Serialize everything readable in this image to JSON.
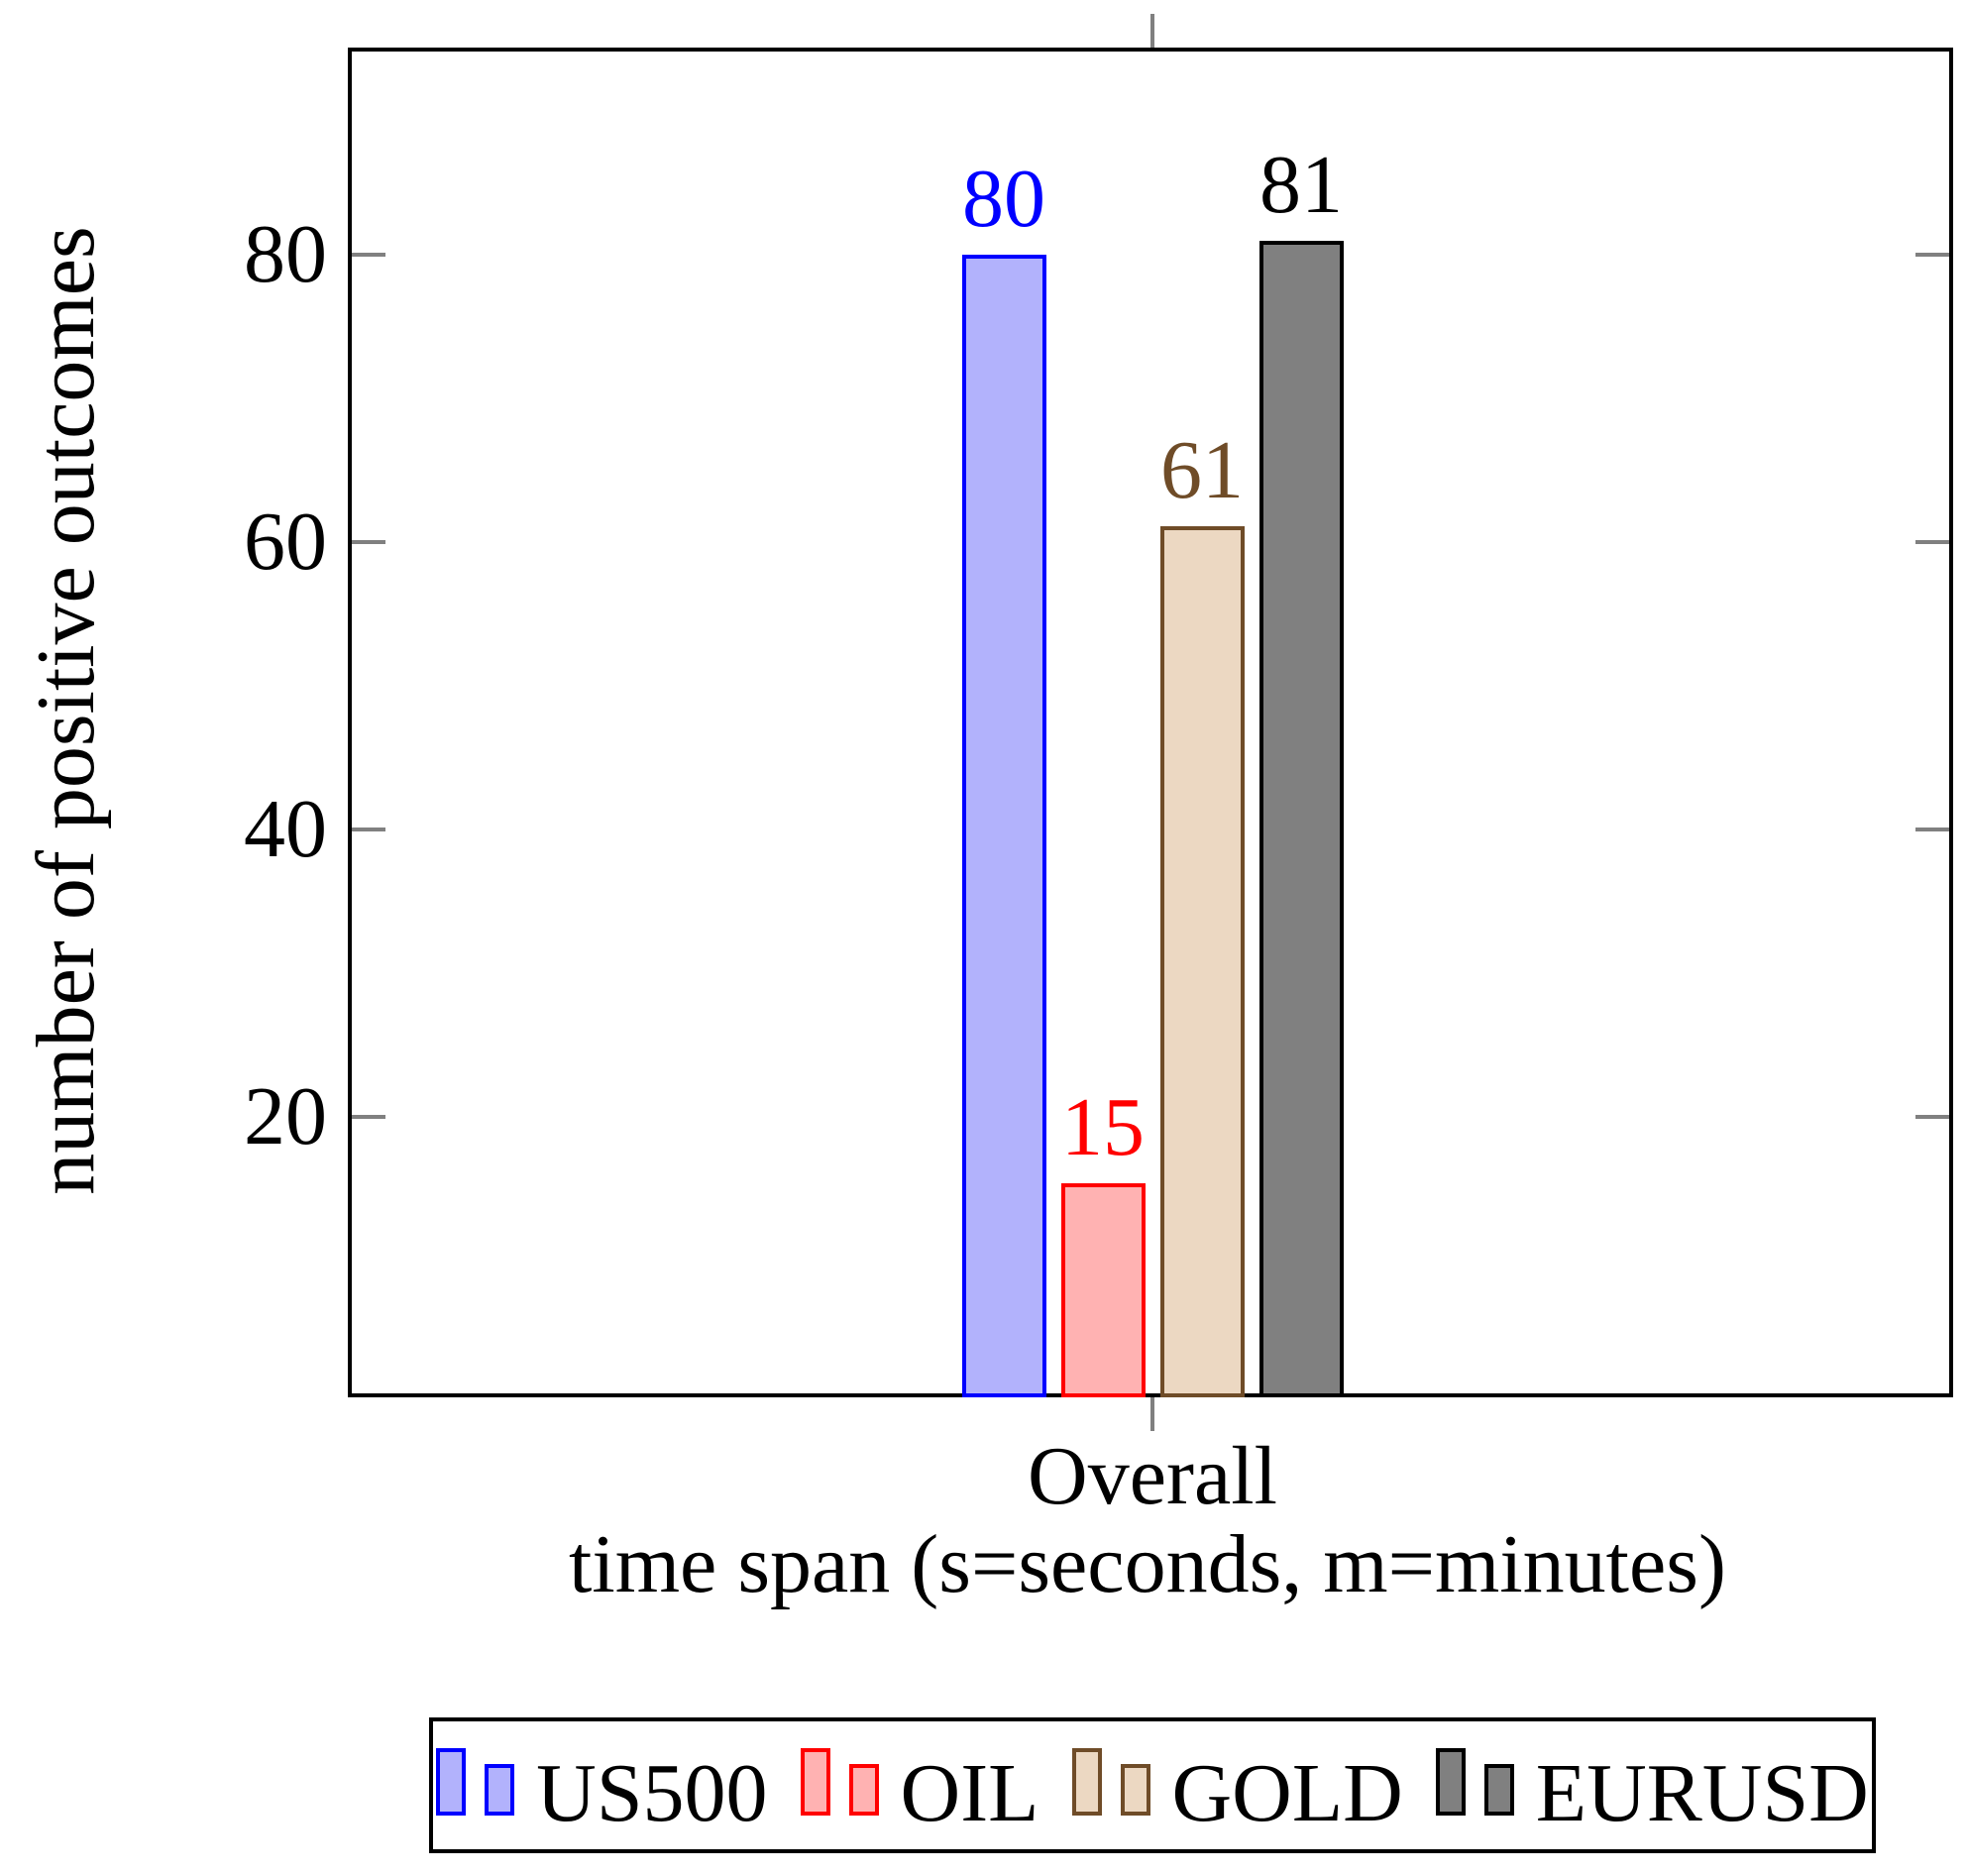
{
  "chart_data": {
    "type": "bar",
    "title": "",
    "categories": [
      "Overall"
    ],
    "series": [
      {
        "name": "US500",
        "values": [
          80
        ],
        "fill": "#b2b2fc",
        "stroke": "#0000ff"
      },
      {
        "name": "OIL",
        "values": [
          15
        ],
        "fill": "#ffb2b2",
        "stroke": "#ff0000"
      },
      {
        "name": "GOLD",
        "values": [
          61
        ],
        "fill": "#ecd8c2",
        "stroke": "#6f4c28"
      },
      {
        "name": "EURUSD",
        "values": [
          81
        ],
        "fill": "#808080",
        "stroke": "#000000"
      }
    ],
    "xlabel": "time span (s=seconds, m=minutes)",
    "ylabel": "number of positive outcomes",
    "yticks": [
      "20",
      "40",
      "60",
      "80"
    ],
    "ylim": [
      0,
      94
    ],
    "grid": false,
    "bar_value_labels": true,
    "legend_position": "below-chart",
    "axis_color": "#000000",
    "tick_color": "#808080",
    "background_color": "#ffffff"
  }
}
